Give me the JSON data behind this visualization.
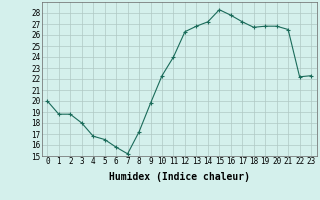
{
  "xlabel": "Humidex (Indice chaleur)",
  "ylabel": "",
  "x": [
    0,
    1,
    2,
    3,
    4,
    5,
    6,
    7,
    8,
    9,
    10,
    11,
    12,
    13,
    14,
    15,
    16,
    17,
    18,
    19,
    20,
    21,
    22,
    23
  ],
  "y": [
    20,
    18.8,
    18.8,
    18.0,
    16.8,
    16.5,
    15.8,
    15.2,
    17.2,
    19.8,
    22.3,
    24.0,
    26.3,
    26.8,
    27.2,
    28.3,
    27.8,
    27.2,
    26.7,
    26.8,
    26.8,
    26.5,
    22.2,
    22.3
  ],
  "line_color": "#1a6b5a",
  "marker": "+",
  "bg_color": "#d4f0ec",
  "grid_color": "#b0c8c4",
  "ylim": [
    15,
    29
  ],
  "xlim": [
    -0.5,
    23.5
  ],
  "yticks": [
    15,
    16,
    17,
    18,
    19,
    20,
    21,
    22,
    23,
    24,
    25,
    26,
    27,
    28
  ],
  "xticks": [
    0,
    1,
    2,
    3,
    4,
    5,
    6,
    7,
    8,
    9,
    10,
    11,
    12,
    13,
    14,
    15,
    16,
    17,
    18,
    19,
    20,
    21,
    22,
    23
  ],
  "xtick_labels": [
    "0",
    "1",
    "2",
    "3",
    "4",
    "5",
    "6",
    "7",
    "8",
    "9",
    "10",
    "11",
    "12",
    "13",
    "14",
    "15",
    "16",
    "17",
    "18",
    "19",
    "20",
    "21",
    "22",
    "23"
  ],
  "tick_fontsize": 5.5,
  "label_fontsize": 7
}
